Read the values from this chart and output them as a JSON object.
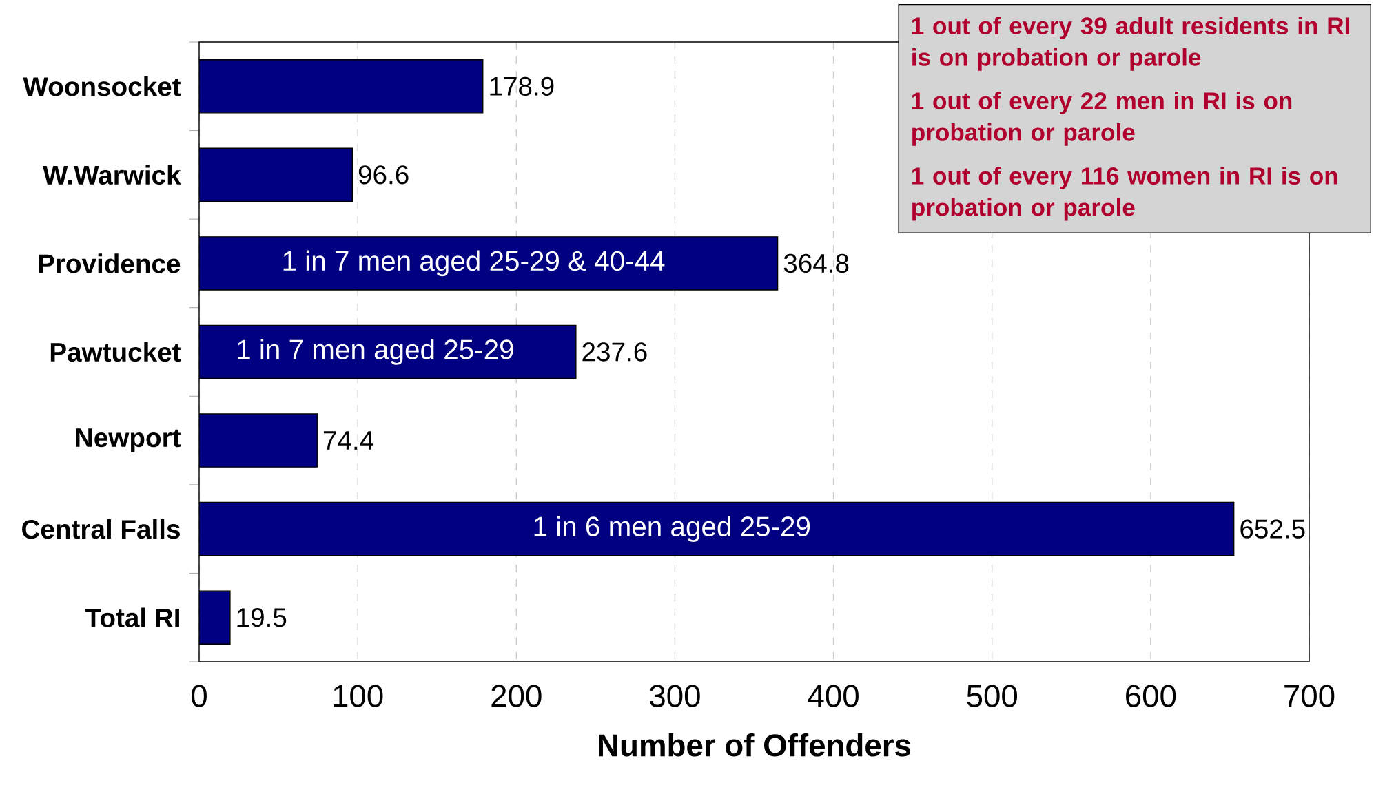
{
  "chart_data": {
    "type": "bar",
    "orientation": "horizontal",
    "xlabel": "Number of Offenders",
    "categories": [
      "Woonsocket",
      "W.Warwick",
      "Providence",
      "Pawtucket",
      "Newport",
      "Central Falls",
      "Total RI"
    ],
    "values": [
      178.9,
      96.6,
      364.8,
      237.6,
      74.4,
      652.5,
      19.5
    ],
    "color": "#000080",
    "xlim": [
      0,
      700
    ],
    "xticks": [
      0,
      100,
      200,
      300,
      400,
      500,
      600,
      700
    ],
    "grid": "x",
    "data_labels": true,
    "annotations": [
      "1 in 7 men aged 25-29 & 40-44",
      "1 in 7 men aged 25-29",
      "1 in 6 men aged 25-29",
      "1 out of every 39 adult residents in RI is on probation or parole",
      "1 out of every 22 men in RI is on probation or parole",
      "1 out of every 116 women in RI is on probation or parole"
    ]
  }
}
